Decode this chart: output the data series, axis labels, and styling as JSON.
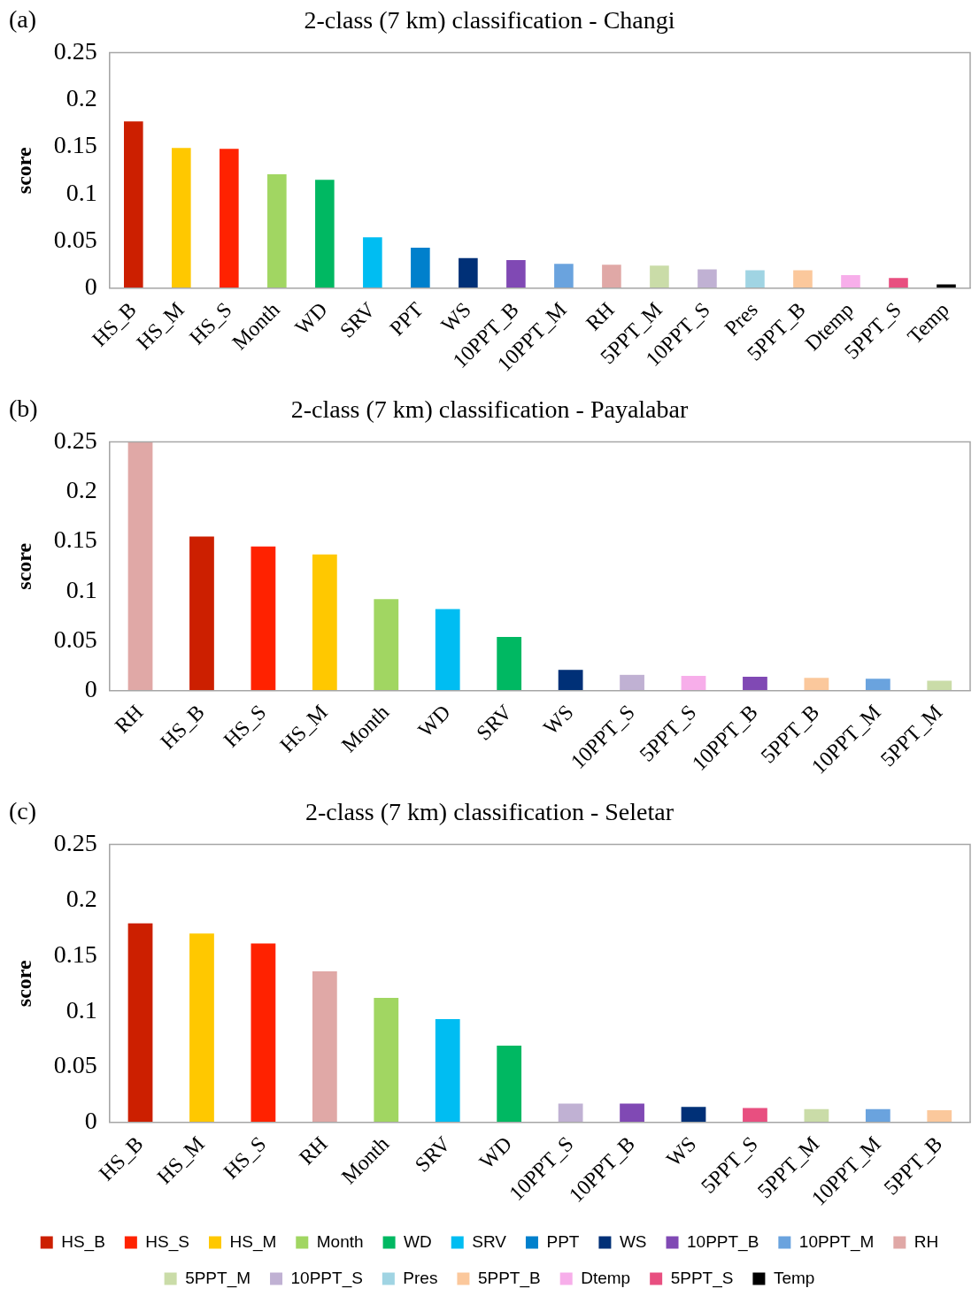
{
  "chart_data": [
    {
      "type": "bar",
      "title": "2-class (7 km) classification - Changi",
      "ylabel": "score",
      "annotations": [
        "(a)"
      ],
      "categories": [
        "HS_B",
        "HS_M",
        "HS_S",
        "Month",
        "WD",
        "SRV",
        "PPT",
        "WS",
        "10PPT_B",
        "10PPT_M",
        "RH",
        "5PPT_M",
        "10PPT_S",
        "Pres",
        "5PPT_B",
        "Dtemp",
        "5PPT_S",
        "Temp"
      ],
      "values": [
        0.177,
        0.149,
        0.148,
        0.121,
        0.115,
        0.054,
        0.043,
        0.032,
        0.03,
        0.026,
        0.025,
        0.024,
        0.02,
        0.019,
        0.019,
        0.014,
        0.011,
        0.004
      ],
      "colors": [
        "#cc1f00",
        "#ffc800",
        "#ff2200",
        "#a1d662",
        "#00b862",
        "#00bdf2",
        "#0080cc",
        "#003077",
        "#8049b4",
        "#6aa3de",
        "#e0a8a6",
        "#cadca8",
        "#c0b1d3",
        "#a0d4e3",
        "#fbc89c",
        "#f7aeea",
        "#e84f80",
        "#000000"
      ],
      "ylim": [
        0,
        0.25
      ],
      "yticks": [
        0,
        0.05,
        0.1,
        0.15,
        0.2,
        0.25
      ],
      "grid": false,
      "legend": false
    },
    {
      "type": "bar",
      "title": "2-class (7 km) classification - Payalabar",
      "ylabel": "score",
      "annotations": [
        "(b)"
      ],
      "categories": [
        "RH",
        "HS_B",
        "HS_S",
        "HS_M",
        "Month",
        "WD",
        "SRV",
        "WS",
        "10PPT_S",
        "5PPT_S",
        "10PPT_B",
        "5PPT_B",
        "10PPT_M",
        "5PPT_M"
      ],
      "values": [
        0.25,
        0.155,
        0.145,
        0.137,
        0.092,
        0.082,
        0.054,
        0.021,
        0.016,
        0.015,
        0.014,
        0.013,
        0.012,
        0.01
      ],
      "colors": [
        "#e0a8a6",
        "#cc1f00",
        "#ff2200",
        "#ffc800",
        "#a1d662",
        "#00bdf2",
        "#00b862",
        "#003077",
        "#c0b1d3",
        "#f7aeea",
        "#8049b4",
        "#fbc89c",
        "#6aa3de",
        "#cadca8"
      ],
      "ylim": [
        0,
        0.25
      ],
      "yticks": [
        0,
        0.05,
        0.1,
        0.15,
        0.2,
        0.25
      ],
      "grid": false,
      "legend": false
    },
    {
      "type": "bar",
      "title": "2-class (7 km) classification - Seletar",
      "ylabel": "score",
      "annotations": [
        "(c)"
      ],
      "categories": [
        "HS_B",
        "HS_M",
        "HS_S",
        "RH",
        "Month",
        "SRV",
        "WD",
        "10PPT_S",
        "10PPT_B",
        "WS",
        "5PPT_S",
        "5PPT_M",
        "10PPT_M",
        "5PPT_B"
      ],
      "stacked": true,
      "series": [
        {
          "name": "HS_B",
          "color": "#cc1f00",
          "values": [
            0.179,
            null,
            null,
            null,
            null,
            null,
            null,
            null,
            null,
            null,
            null,
            null,
            null,
            null
          ]
        },
        {
          "name": "HS_S",
          "color": "#ff2200",
          "values": [
            null,
            null,
            0.161,
            null,
            null,
            null,
            null,
            null,
            null,
            null,
            null,
            null,
            null,
            null
          ]
        },
        {
          "name": "HS_M",
          "color": "#ffc800",
          "values": [
            null,
            0.17,
            null,
            null,
            null,
            null,
            null,
            null,
            null,
            null,
            null,
            null,
            null,
            null
          ]
        },
        {
          "name": "Month",
          "color": "#a1d662",
          "values": [
            null,
            null,
            null,
            null,
            0.112,
            null,
            null,
            null,
            null,
            null,
            null,
            null,
            null,
            null
          ]
        },
        {
          "name": "WD",
          "color": "#00b862",
          "values": [
            null,
            null,
            null,
            null,
            null,
            null,
            0.069,
            null,
            null,
            null,
            null,
            null,
            null,
            null
          ]
        },
        {
          "name": "SRV",
          "color": "#00bdf2",
          "values": [
            null,
            null,
            null,
            null,
            null,
            0.093,
            null,
            null,
            null,
            null,
            null,
            null,
            null,
            null
          ]
        },
        {
          "name": "PPT",
          "color": "#0080cc",
          "values": [
            null,
            null,
            null,
            null,
            null,
            null,
            null,
            null,
            null,
            null,
            null,
            null,
            null,
            null
          ]
        },
        {
          "name": "WS",
          "color": "#003077",
          "values": [
            null,
            null,
            null,
            null,
            null,
            null,
            null,
            null,
            null,
            0.014,
            null,
            null,
            null,
            null
          ]
        },
        {
          "name": "10PPT_B",
          "color": "#8049b4",
          "values": [
            null,
            null,
            null,
            null,
            null,
            null,
            null,
            null,
            0.017,
            null,
            null,
            null,
            null,
            null
          ]
        },
        {
          "name": "10PPT_M",
          "color": "#6aa3de",
          "values": [
            null,
            null,
            null,
            null,
            null,
            null,
            null,
            null,
            null,
            null,
            null,
            null,
            0.012,
            null
          ]
        },
        {
          "name": "RH",
          "color": "#e0a8a6",
          "values": [
            null,
            null,
            null,
            0.136,
            null,
            null,
            null,
            null,
            null,
            null,
            null,
            null,
            null,
            null
          ]
        },
        {
          "name": "5PPT_M",
          "color": "#cadca8",
          "values": [
            null,
            null,
            null,
            null,
            null,
            null,
            null,
            null,
            null,
            null,
            null,
            0.012,
            null,
            null
          ]
        },
        {
          "name": "10PPT_S",
          "color": "#c0b1d3",
          "values": [
            null,
            null,
            null,
            null,
            null,
            null,
            null,
            0.017,
            null,
            null,
            null,
            null,
            null,
            null
          ]
        },
        {
          "name": "Pres",
          "color": "#a0d4e3",
          "values": [
            null,
            null,
            null,
            null,
            null,
            null,
            null,
            null,
            null,
            null,
            null,
            null,
            null,
            null
          ]
        },
        {
          "name": "5PPT_B",
          "color": "#fbc89c",
          "values": [
            null,
            null,
            null,
            null,
            null,
            null,
            null,
            null,
            null,
            null,
            null,
            null,
            null,
            0.011
          ]
        },
        {
          "name": "Dtemp",
          "color": "#f7aeea",
          "values": [
            null,
            null,
            null,
            null,
            null,
            null,
            null,
            null,
            null,
            null,
            null,
            null,
            null,
            null
          ]
        },
        {
          "name": "5PPT_S",
          "color": "#e84f80",
          "values": [
            null,
            null,
            null,
            null,
            null,
            null,
            null,
            null,
            null,
            null,
            0.013,
            null,
            null,
            null
          ]
        },
        {
          "name": "Temp",
          "color": "#000000",
          "values": [
            null,
            null,
            null,
            null,
            null,
            null,
            null,
            null,
            null,
            null,
            null,
            null,
            null,
            null
          ]
        }
      ],
      "ylim": [
        0,
        0.25
      ],
      "yticks": [
        0,
        0.05,
        0.1,
        0.15,
        0.2,
        0.25
      ],
      "grid": false,
      "legend": "bottom"
    }
  ]
}
